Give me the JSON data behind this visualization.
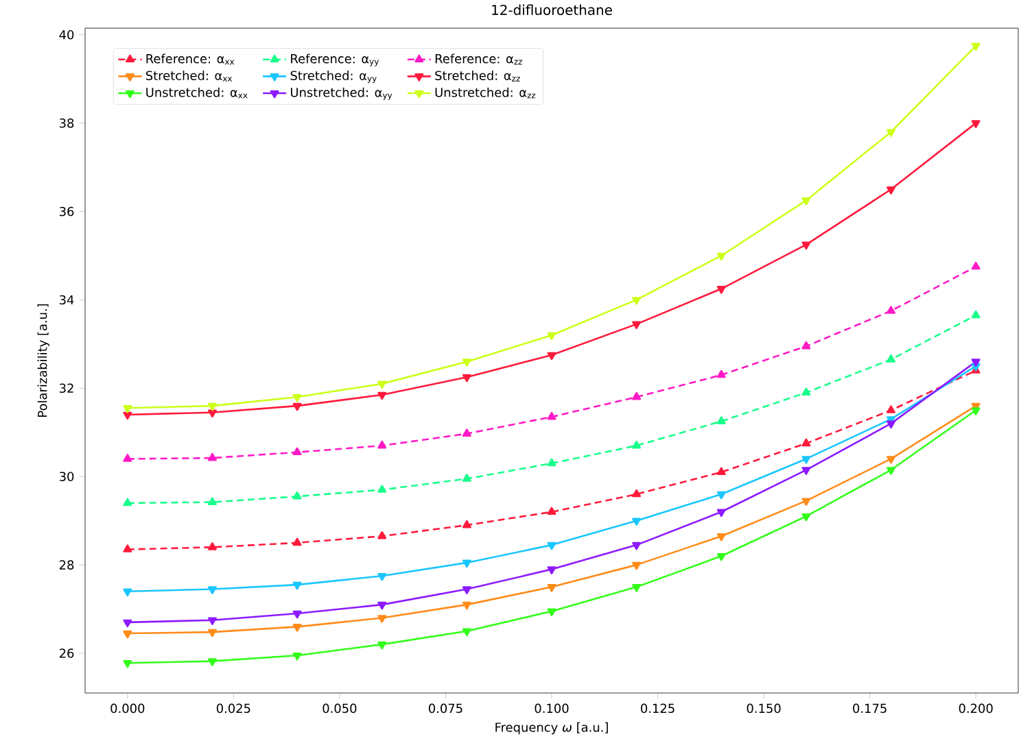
{
  "chart_data": {
    "type": "line",
    "title": "12-difluoroethane",
    "xlabel": "Frequency *ω* [a.u.]",
    "ylabel": "Polarizability [a.u.]",
    "x": [
      0.0,
      0.02,
      0.04,
      0.06,
      0.08,
      0.1,
      0.12,
      0.14,
      0.16,
      0.18,
      0.2
    ],
    "xlim": [
      -0.01,
      0.21
    ],
    "ylim": [
      25.1,
      40.15
    ],
    "xticks": [
      {
        "value": 0.0,
        "label": "0.000"
      },
      {
        "value": 0.025,
        "label": "0.025"
      },
      {
        "value": 0.05,
        "label": "0.050"
      },
      {
        "value": 0.075,
        "label": "0.075"
      },
      {
        "value": 0.1,
        "label": "0.100"
      },
      {
        "value": 0.125,
        "label": "0.125"
      },
      {
        "value": 0.15,
        "label": "0.150"
      },
      {
        "value": 0.175,
        "label": "0.175"
      },
      {
        "value": 0.2,
        "label": "0.200"
      }
    ],
    "yticks": [
      26,
      28,
      30,
      32,
      34,
      36,
      38,
      40
    ],
    "grid": false,
    "legend": "top left",
    "series": [
      {
        "name": "Reference: α$_{xx}$",
        "color": "#ff1a3c",
        "marker": "triangle",
        "line_style": "dashed",
        "values": [
          28.35,
          28.4,
          28.5,
          28.65,
          28.9,
          29.2,
          29.6,
          30.1,
          30.75,
          31.5,
          32.4
        ]
      },
      {
        "name": "Stretched: α$_{xx}$",
        "color": "#ff8c1a",
        "marker": "triangle-down",
        "line_style": "solid",
        "values": [
          26.45,
          26.48,
          26.6,
          26.8,
          27.1,
          27.5,
          28.0,
          28.65,
          29.45,
          30.4,
          31.6
        ]
      },
      {
        "name": "Unstretched: α$_{xx}$",
        "color": "#33ff1a",
        "marker": "triangle-down",
        "line_style": "solid",
        "values": [
          25.78,
          25.82,
          25.95,
          26.2,
          26.5,
          26.95,
          27.5,
          28.2,
          29.1,
          30.15,
          31.5
        ]
      },
      {
        "name": "Reference: α$_{yy}$",
        "color": "#1aff8c",
        "marker": "triangle",
        "line_style": "dashed",
        "values": [
          29.4,
          29.42,
          29.55,
          29.7,
          29.95,
          30.3,
          30.7,
          31.25,
          31.9,
          32.65,
          33.65
        ]
      },
      {
        "name": "Stretched: α$_{yy}$",
        "color": "#1ac6ff",
        "marker": "triangle-down",
        "line_style": "solid",
        "values": [
          27.4,
          27.45,
          27.55,
          27.75,
          28.05,
          28.45,
          29.0,
          29.6,
          30.4,
          31.3,
          32.5
        ]
      },
      {
        "name": "Unstretched: α$_{yy}$",
        "color": "#8c1aff",
        "marker": "triangle-down",
        "line_style": "solid",
        "values": [
          26.7,
          26.75,
          26.9,
          27.1,
          27.45,
          27.9,
          28.45,
          29.2,
          30.15,
          31.2,
          32.6
        ]
      },
      {
        "name": "Reference: α$_{zz}$",
        "color": "#ff1ac6",
        "marker": "triangle",
        "line_style": "dashed",
        "values": [
          30.4,
          30.42,
          30.55,
          30.7,
          30.97,
          31.35,
          31.8,
          32.3,
          32.95,
          33.75,
          34.75
        ]
      },
      {
        "name": "Stretched: α$_{zz}$",
        "color": "#ff1a3c",
        "marker": "triangle-down",
        "line_style": "solid",
        "values": [
          31.4,
          31.45,
          31.6,
          31.85,
          32.25,
          32.75,
          33.45,
          34.25,
          35.25,
          36.5,
          38.0
        ]
      },
      {
        "name": "Unstretched: α$_{zz}$",
        "color": "#ccff1a",
        "marker": "triangle-down",
        "line_style": "solid",
        "values": [
          31.55,
          31.6,
          31.8,
          32.1,
          32.6,
          33.2,
          34.0,
          35.0,
          36.25,
          37.8,
          39.75
        ]
      }
    ]
  }
}
